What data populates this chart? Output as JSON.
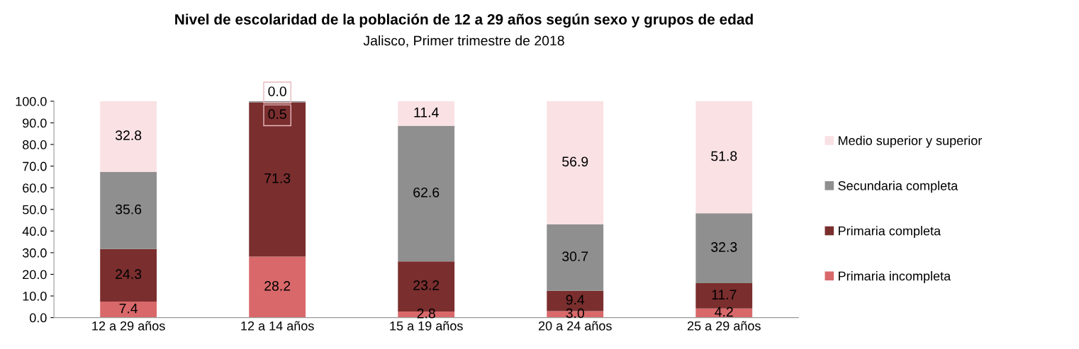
{
  "chart_data": {
    "type": "bar",
    "stacked": true,
    "title": "Nivel de escolaridad de la población de 12 a 29 años según sexo y grupos de edad",
    "subtitle": "Jalisco, Primer trimestre de 2018",
    "categories": [
      "12 a 29 años",
      "12 a 14 años",
      "15 a 19 años",
      "20 a 24 años",
      "25 a 29 años"
    ],
    "series": [
      {
        "name": "Primaria incompleta",
        "color": "#d9686a",
        "values": [
          7.4,
          28.2,
          2.8,
          3.0,
          4.2
        ],
        "value_labels": [
          "7.4",
          "28.2",
          "2.8",
          "3.0",
          "4.2"
        ]
      },
      {
        "name": "Primaria completa",
        "color": "#7a2e2e",
        "values": [
          24.3,
          71.3,
          23.2,
          9.4,
          11.7
        ],
        "value_labels": [
          "24.3",
          "71.3",
          "23.2",
          "9.4",
          "11.7"
        ]
      },
      {
        "name": "Secundaria completa",
        "color": "#8f8f8f",
        "values": [
          35.6,
          0.5,
          62.6,
          30.7,
          32.3
        ],
        "value_labels": [
          "35.6",
          "0.5",
          "62.6",
          "30.7",
          "32.3"
        ]
      },
      {
        "name": "Medio superior y superior",
        "color": "#f9e1e4",
        "values": [
          32.8,
          0.0,
          11.4,
          56.9,
          51.8
        ],
        "value_labels": [
          "32.8",
          "0.0",
          "11.4",
          "56.9",
          "51.8"
        ]
      }
    ],
    "ylim": [
      0,
      100
    ],
    "yticks": [
      {
        "value": 0,
        "label": "0.0"
      },
      {
        "value": 10,
        "label": "10.0"
      },
      {
        "value": 20,
        "label": "20.0"
      },
      {
        "value": 30,
        "label": "30.0"
      },
      {
        "value": 40,
        "label": "40.0"
      },
      {
        "value": 50,
        "label": "50.0"
      },
      {
        "value": 60,
        "label": "60.0"
      },
      {
        "value": 70,
        "label": "70.0"
      },
      {
        "value": 80,
        "label": "80.0"
      },
      {
        "value": 90,
        "label": "90.0"
      },
      {
        "value": 100,
        "label": "100.0"
      }
    ],
    "grid": false,
    "legend": "right"
  }
}
